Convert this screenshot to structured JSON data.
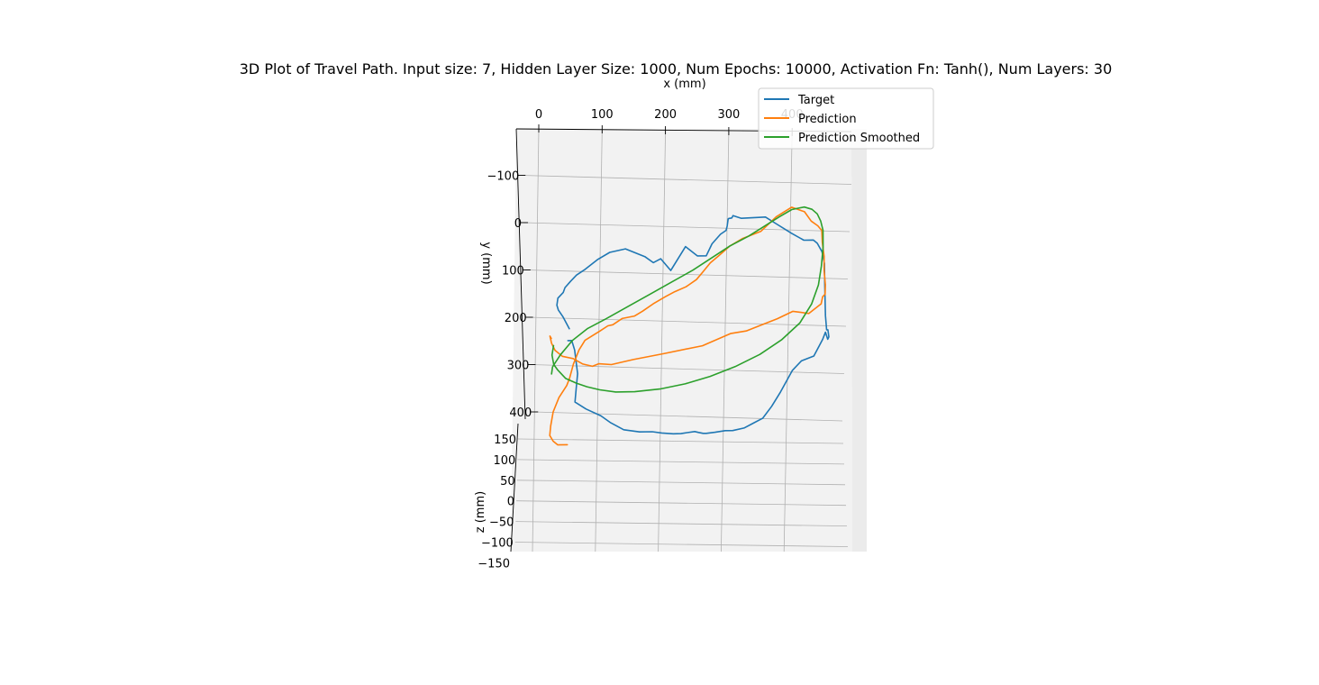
{
  "chart_data": {
    "type": "line",
    "projection": "3d",
    "title": "3D Plot of Travel Path. Input size: 7, Hidden Layer Size: 1000, Num Epochs: 10000, Activation Fn: Tanh(), Num Layers: 30",
    "xlabel": "x (mm)",
    "ylabel": "y (mm)",
    "zlabel": "z (mm)",
    "xticks": [
      "0",
      "100",
      "200",
      "300",
      "400"
    ],
    "yticks": [
      "−100",
      "0",
      "100",
      "200",
      "300",
      "400"
    ],
    "zticks": [
      "150",
      "100",
      "50",
      "0",
      "−50",
      "−100",
      "−150"
    ],
    "xlim": [
      -33,
      495
    ],
    "ylim": [
      -180,
      422
    ],
    "zlim": [
      -150,
      150
    ],
    "grid": true,
    "legend_position": "top-right",
    "series": [
      {
        "name": "Target",
        "color": "#1f77b4",
        "x": [
          41,
          32,
          25,
          23,
          25,
          34,
          37,
          46,
          56,
          70,
          90,
          110,
          135,
          165,
          178,
          190,
          205,
          230,
          248,
          262,
          272,
          286,
          295,
          297,
          299,
          300,
          305,
          307,
          320,
          358,
          375,
          398,
          417,
          432,
          438,
          445,
          448,
          447,
          446,
          447,
          449,
          450,
          448,
          445,
          440,
          425,
          405,
          390,
          370,
          355,
          340,
          325,
          310,
          292,
          280,
          264,
          250,
          245,
          238,
          232,
          220,
          210,
          198,
          180,
          165,
          145,
          120,
          100,
          85,
          62,
          45,
          48,
          51,
          48,
          44,
          38
        ],
        "y": [
          225,
          200,
          185,
          175,
          160,
          148,
          138,
          125,
          112,
          100,
          80,
          65,
          58,
          75,
          88,
          80,
          105,
          55,
          75,
          75,
          50,
          30,
          22,
          13,
          -2,
          -3,
          -4,
          -9,
          -3,
          -5,
          10,
          30,
          45,
          45,
          52,
          70,
          95,
          140,
          205,
          235,
          235,
          250,
          255,
          240,
          255,
          290,
          300,
          320,
          365,
          395,
          420,
          430,
          440,
          445,
          445,
          448,
          450,
          450,
          448,
          446,
          448,
          450,
          450,
          448,
          445,
          445,
          440,
          425,
          410,
          395,
          380,
          350,
          320,
          270,
          250,
          250
        ],
        "z": [
          0,
          0,
          0,
          0,
          0,
          0,
          0,
          0,
          0,
          0,
          0,
          0,
          0,
          0,
          0,
          0,
          0,
          0,
          0,
          0,
          0,
          0,
          0,
          0,
          0,
          0,
          0,
          0,
          0,
          0,
          0,
          0,
          0,
          0,
          0,
          0,
          0,
          0,
          0,
          0,
          0,
          0,
          0,
          0,
          0,
          0,
          0,
          0,
          0,
          0,
          0,
          0,
          0,
          0,
          0,
          0,
          0,
          0,
          0,
          0,
          0,
          0,
          0,
          0,
          0,
          0,
          0,
          0,
          0,
          0,
          0,
          0,
          0,
          0,
          0,
          0
        ]
      },
      {
        "name": "Prediction",
        "color": "#ff7f0e",
        "x": [
          12,
          10,
          12,
          17,
          28,
          45,
          60,
          75,
          85,
          105,
          140,
          190,
          250,
          295,
          320,
          340,
          370,
          395,
          420,
          435,
          440,
          443,
          447,
          448,
          447,
          448,
          446,
          446,
          440,
          430,
          420,
          400,
          375,
          350,
          320,
          300,
          282,
          268,
          255,
          245,
          228,
          210,
          195,
          175,
          158,
          145,
          125,
          110,
          102,
          90,
          65,
          55,
          45,
          38,
          33,
          20,
          10,
          5,
          3,
          8,
          15,
          30
        ],
        "y": [
          245,
          240,
          255,
          270,
          283,
          288,
          300,
          305,
          300,
          302,
          292,
          280,
          265,
          240,
          235,
          225,
          210,
          195,
          200,
          185,
          180,
          165,
          160,
          140,
          110,
          80,
          50,
          25,
          15,
          5,
          -15,
          -25,
          -5,
          25,
          40,
          55,
          75,
          90,
          110,
          125,
          140,
          150,
          160,
          175,
          190,
          200,
          205,
          218,
          220,
          230,
          250,
          270,
          300,
          330,
          345,
          370,
          400,
          430,
          450,
          462,
          470,
          470
        ],
        "z": [
          0,
          0,
          0,
          0,
          0,
          0,
          0,
          0,
          0,
          0,
          0,
          0,
          0,
          0,
          0,
          0,
          0,
          0,
          0,
          0,
          0,
          0,
          0,
          0,
          0,
          0,
          0,
          0,
          0,
          0,
          0,
          0,
          0,
          0,
          0,
          0,
          0,
          0,
          0,
          0,
          0,
          0,
          0,
          0,
          0,
          0,
          0,
          0,
          0,
          0,
          0,
          0,
          0,
          0,
          0,
          0,
          0,
          0,
          0,
          0,
          0,
          0,
          0
        ]
      },
      {
        "name": "Prediction Smoothed",
        "color": "#2ca02c",
        "x": [
          15,
          12,
          14,
          20,
          32,
          48,
          65,
          85,
          110,
          140,
          180,
          220,
          260,
          300,
          340,
          375,
          405,
          425,
          437,
          443,
          447,
          448,
          445,
          440,
          432,
          420,
          400,
          380,
          355,
          330,
          300,
          270,
          240,
          205,
          170,
          135,
          100,
          70,
          45,
          25,
          12,
          10
        ],
        "y": [
          260,
          280,
          300,
          312,
          330,
          340,
          348,
          355,
          360,
          360,
          355,
          345,
          330,
          310,
          285,
          255,
          220,
          180,
          140,
          100,
          60,
          25,
          5,
          -10,
          -20,
          -25,
          -20,
          -5,
          15,
          35,
          55,
          80,
          105,
          130,
          155,
          180,
          205,
          225,
          250,
          280,
          305,
          320
        ],
        "z": [
          0,
          0,
          0,
          0,
          0,
          0,
          0,
          0,
          0,
          0,
          0,
          0,
          0,
          0,
          0,
          0,
          0,
          0,
          0,
          0,
          0,
          0,
          0,
          0,
          0,
          0,
          0,
          0,
          0,
          0,
          0,
          0,
          0,
          0,
          0,
          0,
          0,
          0,
          0,
          0,
          0,
          0
        ]
      }
    ]
  }
}
